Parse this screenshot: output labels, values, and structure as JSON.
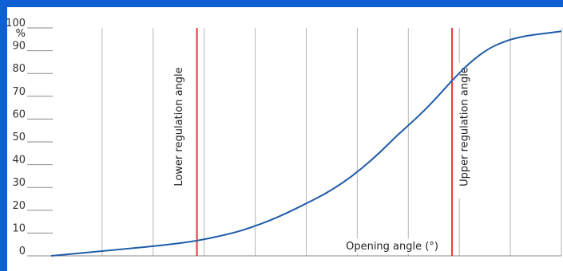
{
  "chart_data": {
    "type": "line",
    "title": "",
    "xlabel": "Opening angle (°)",
    "ylabel": "%",
    "ylim": [
      0,
      100
    ],
    "yticks": [
      "0",
      "10",
      "20",
      "30",
      "40",
      "50",
      "60",
      "70",
      "80",
      "90",
      "100"
    ],
    "grid": "vertical",
    "x_gridlines": 9,
    "series": [
      {
        "x": [
          0,
          1,
          2,
          3,
          4,
          5,
          5.5,
          6,
          6.5,
          7,
          7.5,
          8,
          8.5,
          9,
          9.5,
          10,
          10.5,
          11,
          11.5,
          12,
          12.5,
          13,
          13.5,
          14
        ],
        "values": [
          0,
          1.5,
          3,
          4.5,
          6.5,
          10,
          12.5,
          15.5,
          19,
          23,
          27,
          32,
          38,
          45,
          53,
          60,
          68,
          77,
          85,
          91,
          94.5,
          96.5,
          97.5,
          98.5
        ]
      }
    ],
    "reference_lines": [
      {
        "label": "Lower regulation angle",
        "x": 4
      },
      {
        "label": "Upper regulation angle",
        "x": 11
      }
    ],
    "colors": {
      "curve": "#1f5ba8",
      "reference": "#e53935",
      "grid": "#b5b5b5",
      "frame": "#0d5fd3"
    }
  }
}
